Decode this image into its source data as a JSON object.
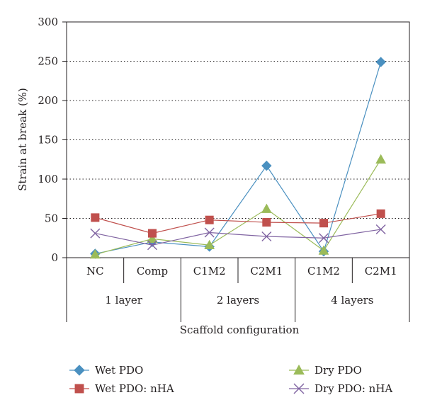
{
  "chart_data": {
    "type": "line",
    "ylabel": "Strain at break (%)",
    "xlabel": "Scaffold configuration",
    "ylim": [
      0,
      300
    ],
    "yticks": [
      0,
      50,
      100,
      150,
      200,
      250,
      300
    ],
    "grid": "horizontal dotted",
    "categories": [
      "NC",
      "Comp",
      "C1M2",
      "C2M1",
      "C1M2",
      "C2M1"
    ],
    "groups": [
      {
        "label": "1 layer",
        "span": [
          0,
          1
        ]
      },
      {
        "label": "2 layers",
        "span": [
          2,
          3
        ]
      },
      {
        "label": "4 layers",
        "span": [
          4,
          5
        ]
      }
    ],
    "legend_position": "bottom",
    "series": [
      {
        "name": "Wet PDO",
        "marker": "diamond",
        "color": "#4a90c0",
        "values": [
          5,
          20,
          14,
          117,
          8,
          249
        ]
      },
      {
        "name": "Dry PDO",
        "marker": "triangle",
        "color": "#9bbb59",
        "values": [
          4,
          24,
          16,
          62,
          9,
          125
        ]
      },
      {
        "name": "Wet PDO: nHA",
        "marker": "square",
        "color": "#c0504d",
        "values": [
          51,
          31,
          48,
          45,
          44,
          56
        ]
      },
      {
        "name": "Dry PDO: nHA",
        "marker": "x",
        "color": "#8064a2",
        "values": [
          31,
          16,
          32,
          27,
          25,
          36
        ]
      }
    ]
  }
}
